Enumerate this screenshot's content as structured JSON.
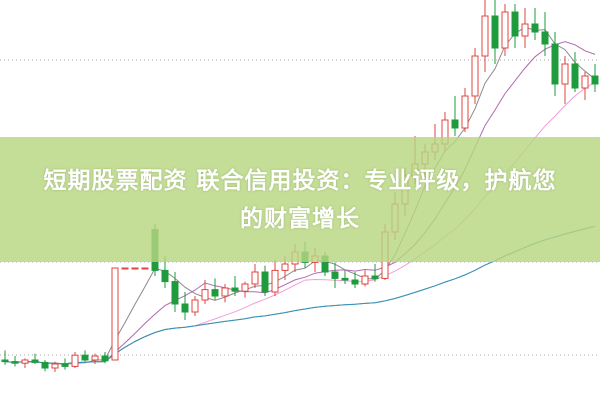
{
  "chart_data": {
    "type": "candlestick",
    "title": "",
    "xlabel": "",
    "ylabel": "",
    "grid": true,
    "colors": {
      "up": "#e0463f",
      "down": "#1f9a3c",
      "ma5": "#8a8a8a",
      "ma10": "#b06ab0",
      "ma20": "#f0a0d8",
      "ma60": "#5fae4a",
      "ma120": "#3a8fc8"
    },
    "moving_averages": [
      5,
      10,
      20,
      60,
      120
    ],
    "ohlc": [
      [
        4.5,
        4.62,
        4.44,
        4.48
      ],
      [
        4.48,
        4.55,
        4.42,
        4.46
      ],
      [
        4.46,
        4.52,
        4.4,
        4.5
      ],
      [
        4.5,
        4.58,
        4.45,
        4.47
      ],
      [
        4.47,
        4.5,
        4.36,
        4.4
      ],
      [
        4.4,
        4.48,
        4.35,
        4.45
      ],
      [
        4.45,
        4.52,
        4.38,
        4.42
      ],
      [
        4.42,
        4.6,
        4.4,
        4.56
      ],
      [
        4.56,
        4.62,
        4.48,
        4.5
      ],
      [
        4.5,
        4.58,
        4.45,
        4.55
      ],
      [
        4.55,
        4.6,
        4.46,
        4.49
      ],
      [
        4.5,
        5.65,
        4.5,
        5.65
      ],
      [
        5.65,
        5.65,
        5.65,
        5.65
      ],
      [
        5.65,
        5.65,
        5.65,
        5.65
      ],
      [
        5.65,
        5.65,
        5.65,
        5.65
      ],
      [
        6.13,
        6.2,
        5.55,
        5.62
      ],
      [
        5.62,
        5.8,
        5.4,
        5.48
      ],
      [
        5.48,
        5.6,
        5.1,
        5.2
      ],
      [
        5.2,
        5.35,
        5.0,
        5.1
      ],
      [
        5.1,
        5.3,
        5.05,
        5.25
      ],
      [
        5.25,
        5.5,
        5.2,
        5.38
      ],
      [
        5.38,
        5.52,
        5.25,
        5.3
      ],
      [
        5.3,
        5.45,
        5.22,
        5.4
      ],
      [
        5.4,
        5.55,
        5.3,
        5.36
      ],
      [
        5.36,
        5.48,
        5.28,
        5.45
      ],
      [
        5.45,
        5.7,
        5.4,
        5.6
      ],
      [
        5.6,
        5.68,
        5.3,
        5.35
      ],
      [
        5.35,
        5.75,
        5.3,
        5.62
      ],
      [
        5.62,
        5.8,
        5.5,
        5.7
      ],
      [
        5.7,
        5.95,
        5.6,
        5.85
      ],
      [
        5.85,
        5.98,
        5.65,
        5.72
      ],
      [
        5.72,
        5.9,
        5.6,
        5.8
      ],
      [
        5.8,
        5.85,
        5.55,
        5.6
      ],
      [
        5.6,
        5.72,
        5.4,
        5.52
      ],
      [
        5.52,
        5.62,
        5.45,
        5.5
      ],
      [
        5.5,
        5.6,
        5.4,
        5.45
      ],
      [
        5.45,
        5.62,
        5.42,
        5.55
      ],
      [
        5.55,
        5.7,
        5.48,
        5.52
      ],
      [
        5.52,
        6.2,
        5.5,
        6.1
      ],
      [
        6.1,
        6.6,
        6.0,
        6.45
      ],
      [
        6.45,
        6.9,
        6.3,
        6.8
      ],
      [
        6.8,
        7.3,
        6.7,
        6.95
      ],
      [
        6.95,
        7.2,
        6.75,
        7.1
      ],
      [
        7.1,
        7.45,
        7.0,
        7.2
      ],
      [
        7.2,
        7.6,
        7.1,
        7.5
      ],
      [
        7.5,
        7.8,
        7.3,
        7.4
      ],
      [
        7.4,
        7.9,
        7.35,
        7.8
      ],
      [
        7.8,
        8.4,
        7.7,
        8.3
      ],
      [
        8.3,
        9.0,
        8.1,
        8.8
      ],
      [
        8.8,
        9.0,
        8.2,
        8.4
      ],
      [
        8.4,
        8.95,
        8.3,
        8.85
      ],
      [
        8.85,
        8.95,
        8.4,
        8.55
      ],
      [
        8.55,
        8.9,
        8.4,
        8.7
      ],
      [
        8.7,
        8.9,
        8.5,
        8.6
      ],
      [
        8.6,
        8.85,
        8.3,
        8.45
      ],
      [
        8.45,
        8.6,
        7.8,
        7.95
      ],
      [
        7.95,
        8.3,
        7.7,
        8.2
      ],
      [
        8.2,
        8.35,
        7.85,
        7.9
      ],
      [
        7.9,
        8.1,
        7.75,
        8.05
      ],
      [
        8.05,
        8.2,
        7.85,
        7.95
      ]
    ]
  },
  "banner": {
    "line1": "短期股票配资 联合信用投资：专业评级，护航您",
    "line2": "的财富增长"
  }
}
